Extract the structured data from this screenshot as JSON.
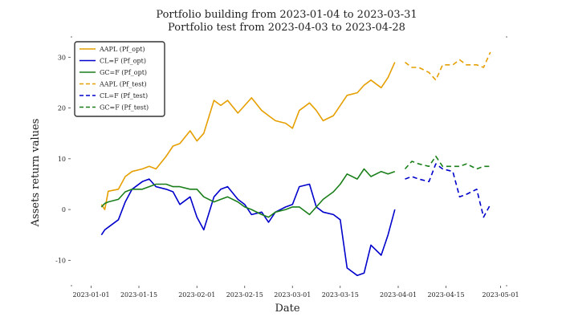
{
  "chart_data": {
    "type": "line",
    "title": "Portfolio building from 2023-01-04 to 2023-03-31",
    "subtitle": "Portfolio test from 2023-04-03 to 2023-04-28",
    "xlabel": "Date",
    "ylabel": "Assets return values",
    "xlim": [
      "2022-12-26",
      "2023-05-03"
    ],
    "ylim": [
      -15,
      34
    ],
    "x_ticks": [
      "2023-01-01",
      "2023-01-15",
      "2023-02-01",
      "2023-02-15",
      "2023-03-01",
      "2023-03-15",
      "2023-04-01",
      "2023-04-15",
      "2023-05-01"
    ],
    "y_ticks": [
      -10,
      0,
      10,
      20,
      30
    ],
    "grid": false,
    "legend_position": "top-left",
    "colors": {
      "AAPL": "#E69F00",
      "CL=F": "#0000CC",
      "GC=F": "#1A7F1A"
    },
    "series": [
      {
        "name": "AAPL (Pf_opt)",
        "color": "#E69F00",
        "dash": false,
        "x": [
          "2023-01-04",
          "2023-01-05",
          "2023-01-06",
          "2023-01-09",
          "2023-01-11",
          "2023-01-13",
          "2023-01-16",
          "2023-01-18",
          "2023-01-20",
          "2023-01-23",
          "2023-01-25",
          "2023-01-27",
          "2023-01-30",
          "2023-02-01",
          "2023-02-03",
          "2023-02-06",
          "2023-02-08",
          "2023-02-10",
          "2023-02-13",
          "2023-02-15",
          "2023-02-17",
          "2023-02-20",
          "2023-02-22",
          "2023-02-24",
          "2023-02-27",
          "2023-03-01",
          "2023-03-03",
          "2023-03-06",
          "2023-03-08",
          "2023-03-10",
          "2023-03-13",
          "2023-03-15",
          "2023-03-17",
          "2023-03-20",
          "2023-03-22",
          "2023-03-24",
          "2023-03-27",
          "2023-03-29",
          "2023-03-31"
        ],
        "y": [
          1.0,
          0.0,
          3.6,
          4.0,
          6.5,
          7.5,
          8.0,
          8.5,
          8.0,
          10.5,
          12.5,
          13.0,
          15.5,
          13.5,
          15.0,
          21.5,
          20.5,
          21.5,
          19.0,
          20.5,
          22.0,
          19.5,
          18.5,
          17.5,
          17.0,
          16.0,
          19.5,
          21.0,
          19.5,
          17.5,
          18.5,
          20.5,
          22.5,
          23.0,
          24.5,
          25.5,
          24.0,
          26.0,
          29.0
        ]
      },
      {
        "name": "CL=F (Pf_opt)",
        "color": "#0000CC",
        "dash": false,
        "x": [
          "2023-01-04",
          "2023-01-05",
          "2023-01-06",
          "2023-01-09",
          "2023-01-11",
          "2023-01-13",
          "2023-01-16",
          "2023-01-18",
          "2023-01-20",
          "2023-01-23",
          "2023-01-25",
          "2023-01-27",
          "2023-01-30",
          "2023-02-01",
          "2023-02-03",
          "2023-02-06",
          "2023-02-08",
          "2023-02-10",
          "2023-02-13",
          "2023-02-15",
          "2023-02-17",
          "2023-02-20",
          "2023-02-22",
          "2023-02-24",
          "2023-02-27",
          "2023-03-01",
          "2023-03-03",
          "2023-03-06",
          "2023-03-08",
          "2023-03-10",
          "2023-03-13",
          "2023-03-15",
          "2023-03-17",
          "2023-03-20",
          "2023-03-22",
          "2023-03-24",
          "2023-03-27",
          "2023-03-29",
          "2023-03-31"
        ],
        "y": [
          -5.0,
          -4.0,
          -3.5,
          -2.0,
          1.5,
          4.0,
          5.5,
          6.0,
          4.5,
          4.0,
          3.5,
          1.0,
          2.5,
          -1.5,
          -4.0,
          2.5,
          4.0,
          4.5,
          2.0,
          1.0,
          -1.0,
          -0.5,
          -2.5,
          -0.5,
          0.5,
          1.0,
          4.5,
          5.0,
          0.5,
          -0.5,
          -1.0,
          -2.0,
          -11.5,
          -13.0,
          -12.5,
          -7.0,
          -9.0,
          -5.0,
          0.0
        ]
      },
      {
        "name": "GC=F (Pf_opt)",
        "color": "#1A7F1A",
        "dash": false,
        "x": [
          "2023-01-04",
          "2023-01-05",
          "2023-01-06",
          "2023-01-09",
          "2023-01-11",
          "2023-01-13",
          "2023-01-16",
          "2023-01-18",
          "2023-01-20",
          "2023-01-23",
          "2023-01-25",
          "2023-01-27",
          "2023-01-30",
          "2023-02-01",
          "2023-02-03",
          "2023-02-06",
          "2023-02-08",
          "2023-02-10",
          "2023-02-13",
          "2023-02-15",
          "2023-02-17",
          "2023-02-20",
          "2023-02-22",
          "2023-02-24",
          "2023-02-27",
          "2023-03-01",
          "2023-03-03",
          "2023-03-06",
          "2023-03-08",
          "2023-03-10",
          "2023-03-13",
          "2023-03-15",
          "2023-03-17",
          "2023-03-20",
          "2023-03-22",
          "2023-03-24",
          "2023-03-27",
          "2023-03-29",
          "2023-03-31"
        ],
        "y": [
          0.5,
          1.2,
          1.5,
          2.0,
          3.5,
          4.0,
          4.0,
          4.5,
          5.0,
          5.0,
          4.5,
          4.5,
          4.0,
          4.0,
          2.5,
          1.5,
          2.0,
          2.5,
          1.5,
          0.5,
          0.0,
          -1.0,
          -1.5,
          -0.5,
          0.0,
          0.5,
          0.5,
          -1.0,
          0.5,
          2.0,
          3.5,
          5.0,
          7.0,
          6.0,
          8.0,
          6.5,
          7.5,
          7.0,
          7.5
        ]
      },
      {
        "name": "AAPL (Pf_test)",
        "color": "#E69F00",
        "dash": true,
        "x": [
          "2023-04-03",
          "2023-04-05",
          "2023-04-07",
          "2023-04-10",
          "2023-04-12",
          "2023-04-14",
          "2023-04-17",
          "2023-04-19",
          "2023-04-21",
          "2023-04-24",
          "2023-04-26",
          "2023-04-28"
        ],
        "y": [
          29.0,
          28.0,
          28.0,
          27.0,
          25.5,
          28.5,
          28.5,
          29.5,
          28.5,
          28.5,
          28.0,
          31.0
        ]
      },
      {
        "name": "CL=F (Pf_test)",
        "color": "#0000CC",
        "dash": true,
        "x": [
          "2023-04-03",
          "2023-04-05",
          "2023-04-07",
          "2023-04-10",
          "2023-04-12",
          "2023-04-14",
          "2023-04-17",
          "2023-04-19",
          "2023-04-21",
          "2023-04-24",
          "2023-04-26",
          "2023-04-28"
        ],
        "y": [
          6.0,
          6.5,
          6.0,
          5.5,
          9.0,
          8.0,
          7.5,
          2.5,
          3.0,
          4.0,
          -1.5,
          1.0
        ]
      },
      {
        "name": "GC=F (Pf_test)",
        "color": "#1A7F1A",
        "dash": true,
        "x": [
          "2023-04-03",
          "2023-04-05",
          "2023-04-07",
          "2023-04-10",
          "2023-04-12",
          "2023-04-14",
          "2023-04-17",
          "2023-04-19",
          "2023-04-21",
          "2023-04-24",
          "2023-04-26",
          "2023-04-28"
        ],
        "y": [
          8.0,
          9.5,
          9.0,
          8.5,
          10.5,
          8.5,
          8.5,
          8.5,
          9.0,
          8.0,
          8.5,
          8.5
        ]
      }
    ]
  }
}
